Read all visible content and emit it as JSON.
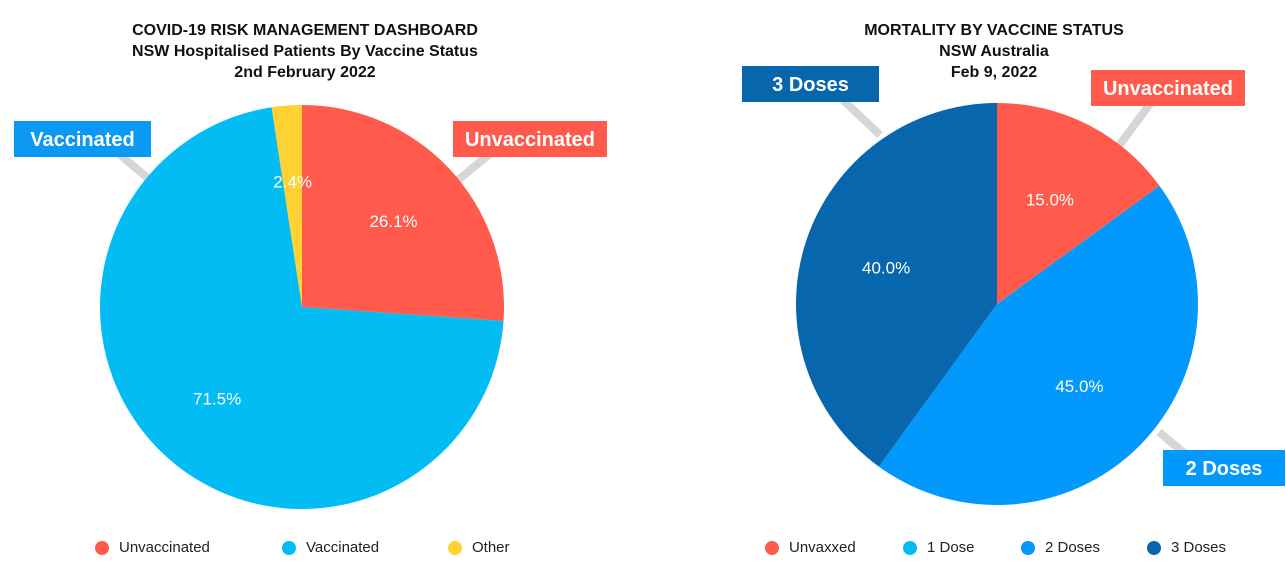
{
  "chart_data": [
    {
      "type": "pie",
      "title": "COVID-19 RISK MANAGEMENT DASHBOARD",
      "subtitle": "NSW Hospitalised Patients By Vaccine Status",
      "date": "2nd February 2022",
      "slices": [
        {
          "name": "Unvaccinated",
          "value": 26.1,
          "label": "26.1%",
          "color": "#ff5a4b"
        },
        {
          "name": "Vaccinated",
          "value": 71.5,
          "label": "71.5%",
          "color": "#03bcf4"
        },
        {
          "name": "Other",
          "value": 2.4,
          "label": "2.4%",
          "color": "#fdd232"
        }
      ],
      "callouts": [
        {
          "text": "Unvaccinated",
          "color": "#ff5a4b"
        },
        {
          "text": "Vaccinated",
          "color": "#0b99f3"
        }
      ],
      "legend": [
        {
          "label": "Unvaccinated",
          "color": "#ff5a4b"
        },
        {
          "label": "Vaccinated",
          "color": "#03bcf4"
        },
        {
          "label": "Other",
          "color": "#fdd232"
        }
      ],
      "legend_position": "bottom"
    },
    {
      "type": "pie",
      "title": "MORTALITY BY VACCINE STATUS",
      "subtitle": "NSW Australia",
      "date": "Feb 9, 2022",
      "slices": [
        {
          "name": "Unvaxxed",
          "value": 15.0,
          "label": "15.0%",
          "color": "#ff5a4b"
        },
        {
          "name": "1 Dose",
          "value": 0,
          "label": "",
          "color": "#03bcf4"
        },
        {
          "name": "2 Doses",
          "value": 45.0,
          "label": "45.0%",
          "color": "#0398fb"
        },
        {
          "name": "3 Doses",
          "value": 40.0,
          "label": "40.0%",
          "color": "#0766ac"
        }
      ],
      "callouts": [
        {
          "text": "Unvaccinated",
          "color": "#ff5a4b"
        },
        {
          "text": "2 Doses",
          "color": "#0398fb"
        },
        {
          "text": "3 Doses",
          "color": "#0766ac"
        }
      ],
      "legend": [
        {
          "label": "Unvaxxed",
          "color": "#ff5a4b"
        },
        {
          "label": "1 Dose",
          "color": "#03bcf4"
        },
        {
          "label": "2 Doses",
          "color": "#0398fb"
        },
        {
          "label": "3 Doses",
          "color": "#0766ac"
        }
      ],
      "legend_position": "bottom"
    }
  ]
}
